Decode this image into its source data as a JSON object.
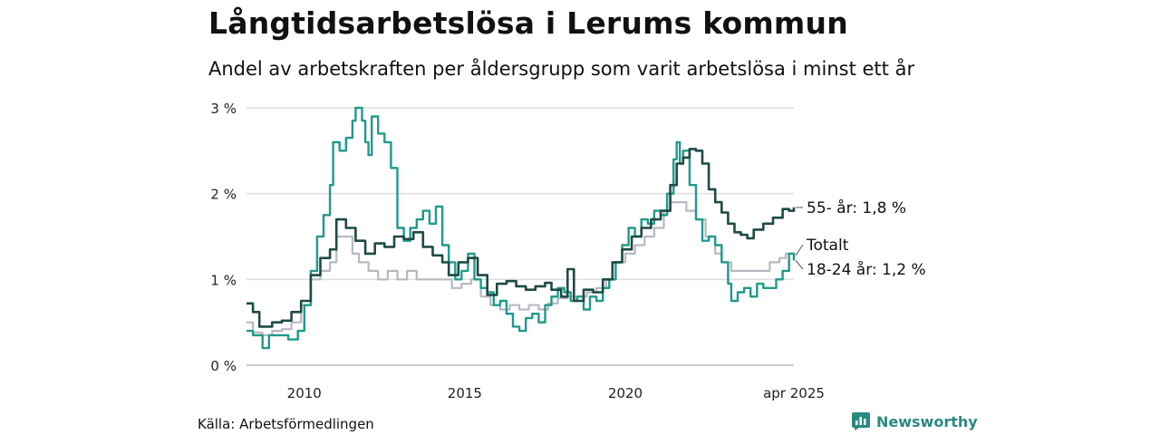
{
  "title": "Långtidsarbetslösa i Lerums kommun",
  "subtitle": "Andel av arbetskraften per åldersgrupp som varit arbetslösa i minst ett år",
  "source": "Källa: Arbetsförmedlingen",
  "brand": {
    "name": "Newsworthy",
    "icon": "newsworthy-logo-icon",
    "color": "#2a8a80"
  },
  "chart_data": {
    "type": "line",
    "ylim": [
      0,
      3
    ],
    "y_ticks": [
      0,
      1,
      2,
      3
    ],
    "y_tick_labels": [
      "0 %",
      "1 %",
      "2 %",
      "3 %"
    ],
    "xlim": [
      2008.2,
      2025.25
    ],
    "x_ticks": [
      2010,
      2015,
      2020,
      2025.25
    ],
    "x_tick_labels": [
      "2010",
      "2015",
      "2020",
      "apr 2025"
    ],
    "grid": true,
    "series": [
      {
        "name": "55- år",
        "color": "#1f4a45",
        "end_label": "55- år: 1,8 %",
        "points": [
          [
            2008.2,
            0.72
          ],
          [
            2008.4,
            0.62
          ],
          [
            2008.6,
            0.45
          ],
          [
            2009.0,
            0.5
          ],
          [
            2009.3,
            0.52
          ],
          [
            2009.6,
            0.62
          ],
          [
            2009.9,
            0.75
          ],
          [
            2010.2,
            1.05
          ],
          [
            2010.5,
            1.25
          ],
          [
            2010.8,
            1.35
          ],
          [
            2011.0,
            1.7
          ],
          [
            2011.3,
            1.6
          ],
          [
            2011.6,
            1.45
          ],
          [
            2011.9,
            1.3
          ],
          [
            2012.2,
            1.42
          ],
          [
            2012.5,
            1.38
          ],
          [
            2012.8,
            1.5
          ],
          [
            2013.1,
            1.47
          ],
          [
            2013.4,
            1.55
          ],
          [
            2013.7,
            1.38
          ],
          [
            2014.0,
            1.28
          ],
          [
            2014.3,
            1.2
          ],
          [
            2014.5,
            1.05
          ],
          [
            2014.8,
            1.2
          ],
          [
            2015.1,
            1.25
          ],
          [
            2015.4,
            1.05
          ],
          [
            2015.7,
            0.82
          ],
          [
            2016.0,
            0.95
          ],
          [
            2016.3,
            0.98
          ],
          [
            2016.6,
            0.92
          ],
          [
            2016.9,
            0.88
          ],
          [
            2017.2,
            0.92
          ],
          [
            2017.5,
            0.96
          ],
          [
            2017.7,
            0.88
          ],
          [
            2018.0,
            0.8
          ],
          [
            2018.2,
            1.12
          ],
          [
            2018.4,
            0.75
          ],
          [
            2018.7,
            0.88
          ],
          [
            2019.0,
            0.85
          ],
          [
            2019.3,
            1.0
          ],
          [
            2019.6,
            1.2
          ],
          [
            2019.9,
            1.35
          ],
          [
            2020.2,
            1.5
          ],
          [
            2020.5,
            1.6
          ],
          [
            2020.8,
            1.7
          ],
          [
            2021.1,
            1.8
          ],
          [
            2021.4,
            2.1
          ],
          [
            2021.6,
            2.35
          ],
          [
            2021.8,
            2.42
          ],
          [
            2022.0,
            2.52
          ],
          [
            2022.2,
            2.5
          ],
          [
            2022.4,
            2.35
          ],
          [
            2022.6,
            2.05
          ],
          [
            2022.8,
            1.9
          ],
          [
            2023.0,
            1.78
          ],
          [
            2023.2,
            1.65
          ],
          [
            2023.4,
            1.55
          ],
          [
            2023.6,
            1.52
          ],
          [
            2023.8,
            1.48
          ],
          [
            2024.0,
            1.58
          ],
          [
            2024.3,
            1.65
          ],
          [
            2024.6,
            1.72
          ],
          [
            2024.9,
            1.82
          ],
          [
            2025.1,
            1.8
          ],
          [
            2025.25,
            1.84
          ]
        ]
      },
      {
        "name": "Totalt",
        "color": "#b8b8c2",
        "end_label": "Totalt",
        "points": [
          [
            2008.2,
            0.5
          ],
          [
            2008.4,
            0.38
          ],
          [
            2008.7,
            0.35
          ],
          [
            2009.0,
            0.4
          ],
          [
            2009.3,
            0.42
          ],
          [
            2009.6,
            0.5
          ],
          [
            2009.9,
            0.7
          ],
          [
            2010.2,
            1.0
          ],
          [
            2010.5,
            1.1
          ],
          [
            2010.8,
            1.2
          ],
          [
            2011.0,
            1.5
          ],
          [
            2011.3,
            1.5
          ],
          [
            2011.5,
            1.3
          ],
          [
            2011.7,
            1.2
          ],
          [
            2012.0,
            1.1
          ],
          [
            2012.3,
            1.0
          ],
          [
            2012.6,
            1.1
          ],
          [
            2012.9,
            1.0
          ],
          [
            2013.2,
            1.1
          ],
          [
            2013.5,
            1.0
          ],
          [
            2014.0,
            1.0
          ],
          [
            2014.4,
            1.0
          ],
          [
            2014.6,
            0.9
          ],
          [
            2014.9,
            0.95
          ],
          [
            2015.2,
            1.0
          ],
          [
            2015.5,
            0.8
          ],
          [
            2015.8,
            0.7
          ],
          [
            2016.1,
            0.65
          ],
          [
            2016.4,
            0.7
          ],
          [
            2016.7,
            0.65
          ],
          [
            2017.0,
            0.7
          ],
          [
            2017.3,
            0.65
          ],
          [
            2017.6,
            0.72
          ],
          [
            2017.9,
            0.78
          ],
          [
            2018.2,
            0.8
          ],
          [
            2018.5,
            0.8
          ],
          [
            2018.8,
            0.85
          ],
          [
            2019.1,
            0.9
          ],
          [
            2019.4,
            1.0
          ],
          [
            2019.7,
            1.2
          ],
          [
            2020.0,
            1.3
          ],
          [
            2020.3,
            1.4
          ],
          [
            2020.6,
            1.5
          ],
          [
            2020.9,
            1.6
          ],
          [
            2021.2,
            1.8
          ],
          [
            2021.4,
            1.9
          ],
          [
            2021.7,
            1.9
          ],
          [
            2021.9,
            1.8
          ],
          [
            2022.2,
            1.7
          ],
          [
            2022.5,
            1.5
          ],
          [
            2022.8,
            1.3
          ],
          [
            2023.0,
            1.2
          ],
          [
            2023.3,
            1.1
          ],
          [
            2023.6,
            1.1
          ],
          [
            2023.9,
            1.1
          ],
          [
            2024.2,
            1.1
          ],
          [
            2024.5,
            1.2
          ],
          [
            2024.8,
            1.25
          ],
          [
            2025.0,
            1.3
          ],
          [
            2025.25,
            1.28
          ]
        ]
      },
      {
        "name": "18-24 år",
        "color": "#1f9a8a",
        "end_label": "18-24 år: 1,2 %",
        "points": [
          [
            2008.2,
            0.4
          ],
          [
            2008.4,
            0.35
          ],
          [
            2008.6,
            0.35
          ],
          [
            2008.7,
            0.2
          ],
          [
            2008.9,
            0.35
          ],
          [
            2009.2,
            0.35
          ],
          [
            2009.5,
            0.3
          ],
          [
            2009.8,
            0.4
          ],
          [
            2010.0,
            0.7
          ],
          [
            2010.2,
            1.1
          ],
          [
            2010.4,
            1.5
          ],
          [
            2010.6,
            1.75
          ],
          [
            2010.8,
            2.1
          ],
          [
            2010.9,
            2.6
          ],
          [
            2011.1,
            2.5
          ],
          [
            2011.3,
            2.65
          ],
          [
            2011.5,
            2.85
          ],
          [
            2011.6,
            3.0
          ],
          [
            2011.8,
            2.85
          ],
          [
            2011.9,
            2.6
          ],
          [
            2012.0,
            2.45
          ],
          [
            2012.1,
            2.9
          ],
          [
            2012.3,
            2.7
          ],
          [
            2012.5,
            2.6
          ],
          [
            2012.7,
            2.3
          ],
          [
            2012.9,
            1.6
          ],
          [
            2013.1,
            1.45
          ],
          [
            2013.3,
            1.6
          ],
          [
            2013.5,
            1.7
          ],
          [
            2013.7,
            1.8
          ],
          [
            2013.9,
            1.65
          ],
          [
            2014.1,
            1.85
          ],
          [
            2014.3,
            1.4
          ],
          [
            2014.5,
            1.2
          ],
          [
            2014.7,
            1.0
          ],
          [
            2014.9,
            1.1
          ],
          [
            2015.1,
            1.3
          ],
          [
            2015.3,
            1.0
          ],
          [
            2015.5,
            0.9
          ],
          [
            2015.7,
            0.85
          ],
          [
            2015.9,
            0.7
          ],
          [
            2016.1,
            0.75
          ],
          [
            2016.3,
            0.6
          ],
          [
            2016.5,
            0.45
          ],
          [
            2016.7,
            0.4
          ],
          [
            2016.9,
            0.55
          ],
          [
            2017.1,
            0.6
          ],
          [
            2017.3,
            0.5
          ],
          [
            2017.5,
            0.7
          ],
          [
            2017.7,
            0.8
          ],
          [
            2017.9,
            0.9
          ],
          [
            2018.1,
            0.85
          ],
          [
            2018.3,
            0.75
          ],
          [
            2018.5,
            0.8
          ],
          [
            2018.7,
            0.65
          ],
          [
            2018.9,
            0.8
          ],
          [
            2019.1,
            0.75
          ],
          [
            2019.3,
            0.9
          ],
          [
            2019.5,
            1.0
          ],
          [
            2019.7,
            1.2
          ],
          [
            2019.9,
            1.4
          ],
          [
            2020.1,
            1.6
          ],
          [
            2020.3,
            1.5
          ],
          [
            2020.5,
            1.7
          ],
          [
            2020.7,
            1.65
          ],
          [
            2020.9,
            1.8
          ],
          [
            2021.1,
            1.75
          ],
          [
            2021.3,
            2.0
          ],
          [
            2021.5,
            2.4
          ],
          [
            2021.6,
            2.6
          ],
          [
            2021.7,
            2.35
          ],
          [
            2021.8,
            2.5
          ],
          [
            2022.0,
            2.1
          ],
          [
            2022.2,
            1.7
          ],
          [
            2022.4,
            1.45
          ],
          [
            2022.6,
            1.5
          ],
          [
            2022.8,
            1.4
          ],
          [
            2023.0,
            1.2
          ],
          [
            2023.2,
            0.95
          ],
          [
            2023.3,
            0.75
          ],
          [
            2023.5,
            0.85
          ],
          [
            2023.7,
            0.9
          ],
          [
            2023.9,
            0.8
          ],
          [
            2024.1,
            0.95
          ],
          [
            2024.3,
            0.9
          ],
          [
            2024.5,
            0.9
          ],
          [
            2024.7,
            1.0
          ],
          [
            2024.9,
            1.1
          ],
          [
            2025.1,
            1.3
          ],
          [
            2025.25,
            1.22
          ]
        ]
      }
    ]
  }
}
